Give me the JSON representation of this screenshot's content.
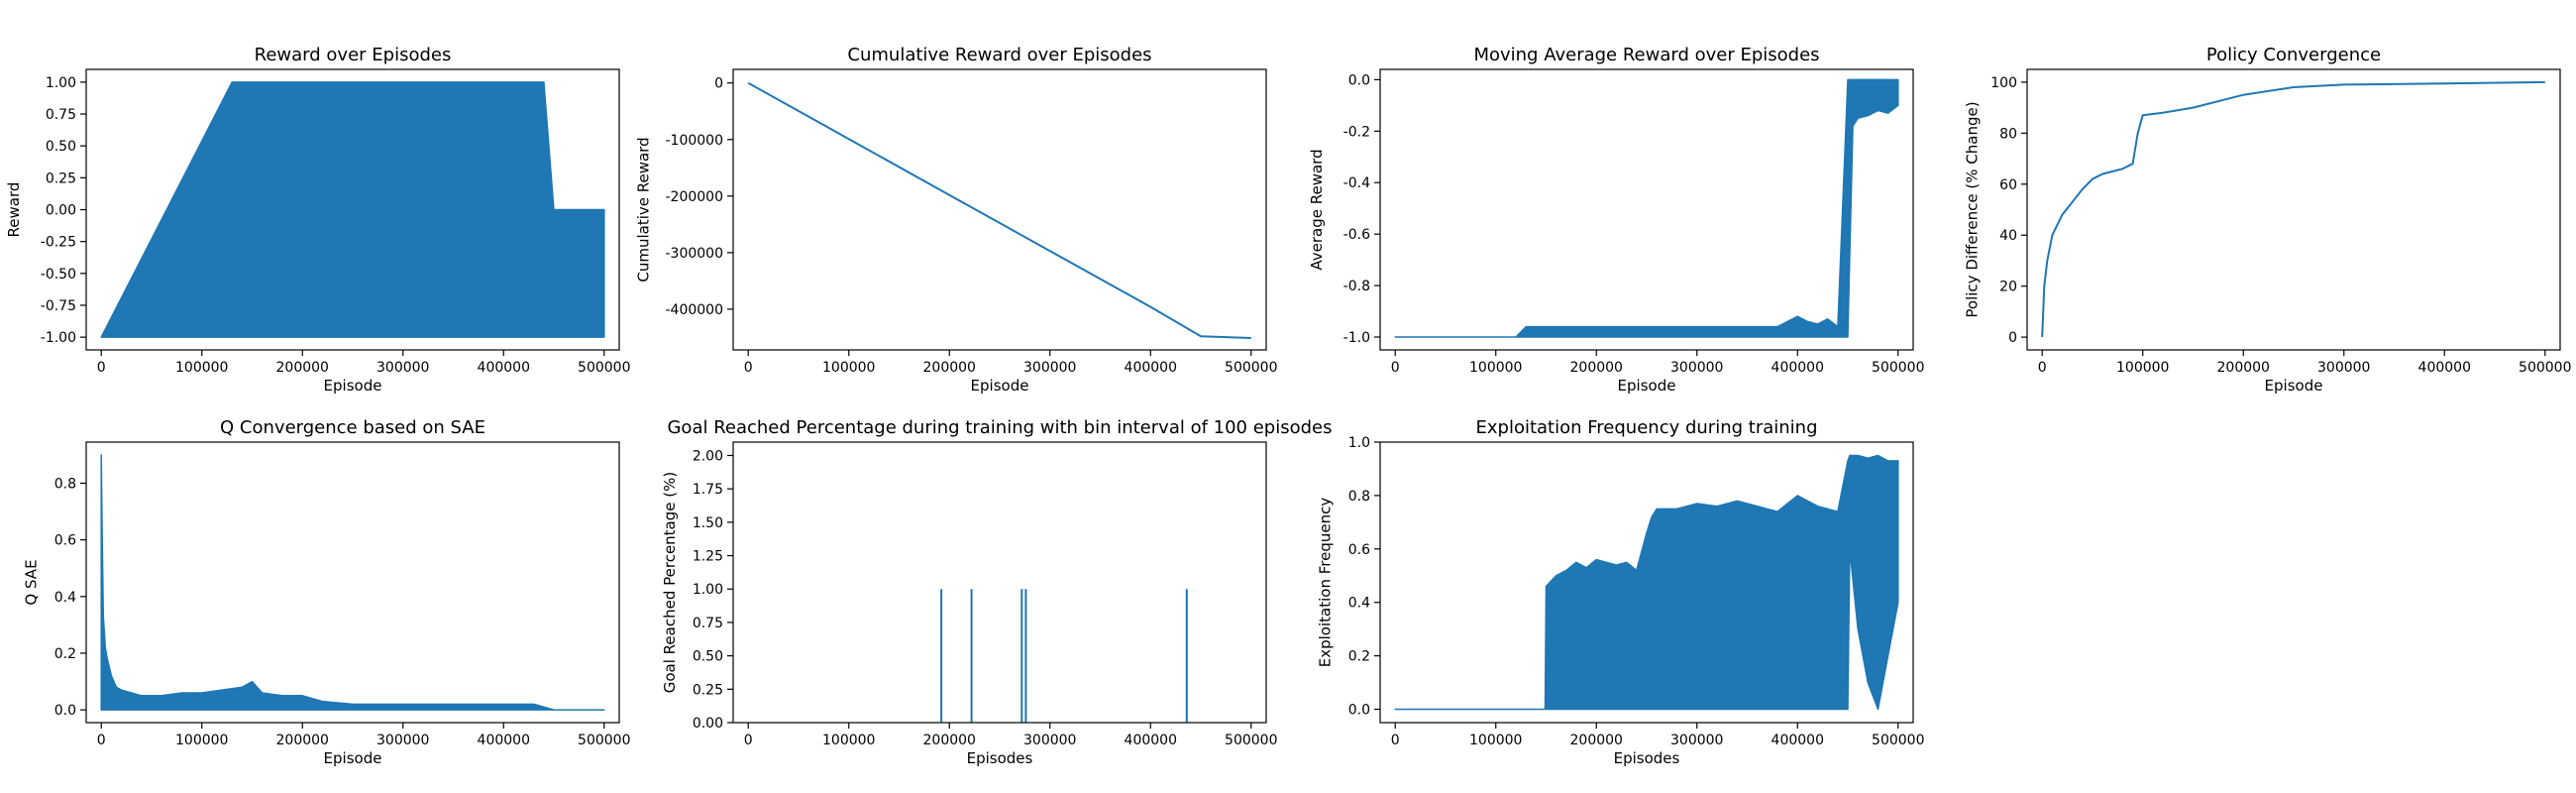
{
  "figure": {
    "suptitle": ""
  },
  "chart_data": [
    {
      "type": "line",
      "title": "Reward over Episodes",
      "xlabel": "Episode",
      "ylabel": "Reward",
      "xlim": [
        -15000,
        515000
      ],
      "ylim": [
        -1.1,
        1.1
      ],
      "xticks": [
        0,
        100000,
        200000,
        300000,
        400000,
        500000
      ],
      "yticks": [
        -1.0,
        -0.75,
        -0.5,
        -0.25,
        0.0,
        0.25,
        0.5,
        0.75,
        1.0
      ],
      "yticks_decimals": 2,
      "grid": false,
      "color": "#1f77b4",
      "series": [
        {
          "x": [
            0,
            130000,
            135000,
            140000,
            150000,
            160000,
            170000,
            180000,
            190000,
            200000,
            210000,
            220000,
            230000,
            240000,
            245000,
            250000,
            255000,
            260000,
            270000,
            280000,
            290000,
            300000,
            310000,
            320000,
            330000,
            340000,
            350000,
            360000,
            370000,
            380000,
            390000,
            400000,
            410000,
            420000,
            430000,
            440000,
            450000,
            460000,
            470000,
            480000,
            490000,
            500000
          ],
          "min": [
            -1,
            -1,
            -1,
            -1,
            -1,
            -1,
            -1,
            -1,
            -1,
            -1,
            -1,
            -1,
            -1,
            -1,
            -1,
            -1,
            -1,
            -1,
            -1,
            -1,
            -1,
            -1,
            -1,
            -1,
            -1,
            -1,
            -1,
            -1,
            -1,
            -1,
            -1,
            -1,
            -1,
            -1,
            -1,
            -1,
            -1,
            -1,
            -1,
            -1,
            -1,
            -1
          ],
          "max": [
            -1,
            1,
            1,
            1,
            1,
            1,
            1,
            1,
            1,
            1,
            1,
            1,
            1,
            1,
            1,
            1,
            1,
            1,
            1,
            1,
            1,
            1,
            1,
            1,
            1,
            1,
            1,
            1,
            1,
            1,
            1,
            1,
            1,
            1,
            1,
            1,
            0,
            0,
            0,
            0,
            0,
            0
          ]
        }
      ]
    },
    {
      "type": "line",
      "title": "Cumulative Reward over Episodes",
      "xlabel": "Episode",
      "ylabel": "Cumulative Reward",
      "xlim": [
        -15000,
        515000
      ],
      "ylim": [
        -472000,
        24000
      ],
      "xticks": [
        0,
        100000,
        200000,
        300000,
        400000,
        500000
      ],
      "yticks": [
        -400000,
        -300000,
        -200000,
        -100000,
        0
      ],
      "yticks_decimals": 0,
      "grid": false,
      "color": "#1f77b4",
      "series": [
        {
          "x": [
            0,
            100000,
            200000,
            300000,
            400000,
            450000,
            500000
          ],
          "y": [
            0,
            -99000,
            -198000,
            -297000,
            -396000,
            -448000,
            -451000
          ]
        }
      ]
    },
    {
      "type": "line",
      "title": "Moving Average Reward over Episodes",
      "xlabel": "Episode",
      "ylabel": "Average Reward",
      "xlim": [
        -15000,
        515000
      ],
      "ylim": [
        -1.05,
        0.04
      ],
      "xticks": [
        0,
        100000,
        200000,
        300000,
        400000,
        500000
      ],
      "yticks": [
        -1.0,
        -0.8,
        -0.6,
        -0.4,
        -0.2,
        0.0
      ],
      "yticks_decimals": 1,
      "grid": false,
      "color": "#1f77b4",
      "series": [
        {
          "x": [
            0,
            120000,
            130000,
            140000,
            150000,
            160000,
            170000,
            180000,
            190000,
            200000,
            210000,
            220000,
            230000,
            240000,
            250000,
            260000,
            270000,
            280000,
            290000,
            300000,
            310000,
            320000,
            330000,
            340000,
            350000,
            360000,
            370000,
            380000,
            390000,
            400000,
            410000,
            420000,
            430000,
            440000,
            450000,
            455000,
            460000,
            470000,
            480000,
            490000,
            500000
          ],
          "min": [
            -1,
            -1,
            -1,
            -1,
            -1,
            -1,
            -1,
            -1,
            -1,
            -1,
            -1,
            -1,
            -1,
            -1,
            -1,
            -1,
            -1,
            -1,
            -1,
            -1,
            -1,
            -1,
            -1,
            -1,
            -1,
            -1,
            -1,
            -1,
            -1,
            -1,
            -1,
            -1,
            -1,
            -1,
            -1,
            -0.18,
            -0.15,
            -0.14,
            -0.12,
            -0.13,
            -0.1
          ],
          "max": [
            -1,
            -1,
            -0.96,
            -0.96,
            -0.96,
            -0.96,
            -0.96,
            -0.96,
            -0.96,
            -0.96,
            -0.96,
            -0.96,
            -0.96,
            -0.96,
            -0.96,
            -0.96,
            -0.96,
            -0.96,
            -0.96,
            -0.96,
            -0.96,
            -0.96,
            -0.96,
            -0.96,
            -0.96,
            -0.96,
            -0.96,
            -0.96,
            -0.94,
            -0.92,
            -0.94,
            -0.95,
            -0.93,
            -0.96,
            0,
            0,
            0,
            0,
            0,
            0,
            0
          ]
        }
      ]
    },
    {
      "type": "line",
      "title": "Policy Convergence",
      "xlabel": "Episode",
      "ylabel": "Policy Difference (% Change)",
      "xlim": [
        -15000,
        515000
      ],
      "ylim": [
        -5,
        105
      ],
      "xticks": [
        0,
        100000,
        200000,
        300000,
        400000,
        500000
      ],
      "yticks": [
        0,
        20,
        40,
        60,
        80,
        100
      ],
      "yticks_decimals": 0,
      "grid": false,
      "color": "#1f77b4",
      "series": [
        {
          "x": [
            0,
            2000,
            5000,
            10000,
            20000,
            30000,
            40000,
            50000,
            60000,
            70000,
            80000,
            90000,
            95000,
            100000,
            120000,
            150000,
            200000,
            250000,
            300000,
            400000,
            500000
          ],
          "y": [
            0,
            20,
            30,
            40,
            48,
            53,
            58,
            62,
            64,
            65,
            66,
            68,
            80,
            87,
            88,
            90,
            95,
            98,
            99,
            99.5,
            100
          ]
        }
      ]
    },
    {
      "type": "line",
      "title": "Q Convergence based on SAE",
      "xlabel": "Episode",
      "ylabel": "Q SAE",
      "xlim": [
        -15000,
        515000
      ],
      "ylim": [
        -0.045,
        0.945
      ],
      "xticks": [
        0,
        100000,
        200000,
        300000,
        400000,
        500000
      ],
      "yticks": [
        0.0,
        0.2,
        0.4,
        0.6,
        0.8
      ],
      "yticks_decimals": 1,
      "grid": false,
      "color": "#1f77b4",
      "series": [
        {
          "x": [
            0,
            1000,
            2000,
            4000,
            6000,
            10000,
            15000,
            20000,
            30000,
            40000,
            50000,
            60000,
            80000,
            100000,
            120000,
            140000,
            150000,
            160000,
            180000,
            200000,
            220000,
            250000,
            300000,
            350000,
            400000,
            430000,
            450000,
            500000
          ],
          "min": [
            0,
            0,
            0,
            0,
            0,
            0,
            0,
            0,
            0,
            0,
            0,
            0,
            0,
            0,
            0,
            0,
            0,
            0,
            0,
            0,
            0,
            0,
            0,
            0,
            0,
            0,
            0,
            0
          ],
          "max": [
            0.9,
            0.6,
            0.33,
            0.22,
            0.18,
            0.12,
            0.08,
            0.07,
            0.06,
            0.05,
            0.05,
            0.05,
            0.06,
            0.06,
            0.07,
            0.08,
            0.1,
            0.06,
            0.05,
            0.05,
            0.03,
            0.02,
            0.02,
            0.02,
            0.02,
            0.02,
            0,
            0
          ]
        }
      ]
    },
    {
      "type": "bar",
      "title": "Goal Reached Percentage during training with bin interval of 100 episodes",
      "xlabel": "Episodes",
      "ylabel": "Goal Reached Percentage (%)",
      "xlim": [
        -15000,
        515000
      ],
      "ylim": [
        0,
        2.1
      ],
      "xticks": [
        0,
        100000,
        200000,
        300000,
        400000,
        500000
      ],
      "yticks": [
        0.0,
        0.25,
        0.5,
        0.75,
        1.0,
        1.25,
        1.5,
        1.75,
        2.0
      ],
      "yticks_decimals": 2,
      "grid": false,
      "color": "#1f77b4",
      "series": [
        {
          "x": [
            192000,
            222000,
            272000,
            276000,
            436000
          ],
          "y": [
            1,
            1,
            1,
            1,
            1
          ]
        }
      ]
    },
    {
      "type": "line",
      "title": "Exploitation Frequency during training",
      "xlabel": "Episodes",
      "ylabel": "Exploitation Frequency",
      "xlim": [
        -15000,
        515000
      ],
      "ylim": [
        -0.05,
        1.0
      ],
      "xticks": [
        0,
        100000,
        200000,
        300000,
        400000,
        500000
      ],
      "yticks": [
        0.0,
        0.2,
        0.4,
        0.6,
        0.8,
        1.0
      ],
      "yticks_decimals": 1,
      "grid": false,
      "color": "#1f77b4",
      "series": [
        {
          "x": [
            0,
            149000,
            150000,
            160000,
            170000,
            180000,
            190000,
            200000,
            210000,
            220000,
            230000,
            240000,
            250000,
            255000,
            260000,
            280000,
            300000,
            320000,
            340000,
            360000,
            380000,
            400000,
            420000,
            440000,
            450000,
            452000,
            460000,
            470000,
            480000,
            490000,
            500000
          ],
          "min": [
            0,
            0,
            0,
            0,
            0,
            0,
            0,
            0,
            0,
            0,
            0,
            0,
            0,
            0,
            0,
            0,
            0,
            0,
            0,
            0,
            0,
            0,
            0,
            0,
            0,
            0.6,
            0.3,
            0.1,
            0,
            0.2,
            0.4
          ],
          "max": [
            0,
            0,
            0.46,
            0.5,
            0.52,
            0.55,
            0.53,
            0.56,
            0.55,
            0.54,
            0.55,
            0.52,
            0.66,
            0.72,
            0.75,
            0.75,
            0.77,
            0.76,
            0.78,
            0.76,
            0.74,
            0.8,
            0.76,
            0.74,
            0.93,
            0.95,
            0.95,
            0.94,
            0.95,
            0.93,
            0.93
          ]
        }
      ]
    }
  ]
}
